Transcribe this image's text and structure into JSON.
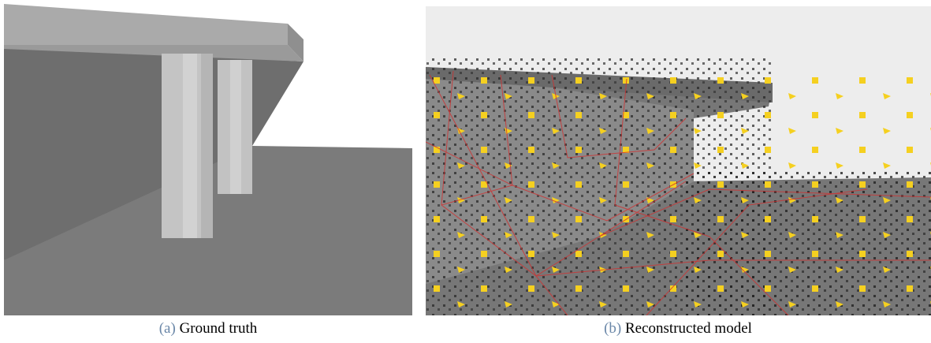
{
  "figure": {
    "panels": [
      {
        "label": "(a)",
        "caption": "Ground truth"
      },
      {
        "label": "(b)",
        "caption": "Reconstructed model"
      }
    ]
  }
}
